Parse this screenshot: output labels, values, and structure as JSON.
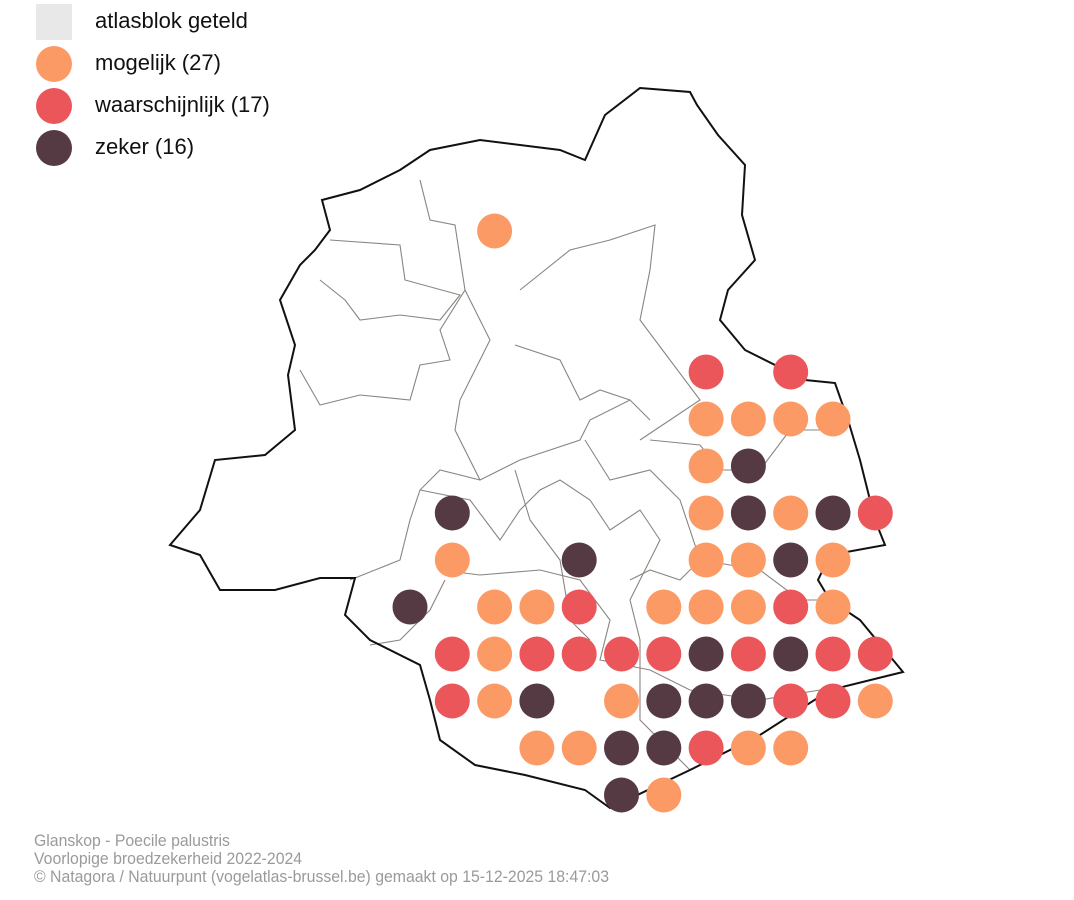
{
  "legend": {
    "counted": {
      "label": "atlasblok geteld",
      "color": "#e8e8e8"
    },
    "items": [
      {
        "key": "mogelijk",
        "label": "mogelijk (27)",
        "color": "#fc9a66"
      },
      {
        "key": "waarschijnlijk",
        "label": "waarschijnlijk (17)",
        "color": "#eb565a"
      },
      {
        "key": "zeker",
        "label": "zeker (16)",
        "color": "#553a44"
      }
    ]
  },
  "footer": {
    "species": "Glanskop - Poecile palustris",
    "subtitle": "Voorlopige broedzekerheid 2022-2024",
    "credit": "© Natagora / Natuurpunt (vogelatlas-brussel.be) gemaakt op 15-12-2025 18:47:03"
  },
  "blocks": [
    {
      "col": 2,
      "row": 0,
      "status": "mogelijk"
    },
    {
      "col": 7,
      "row": 3,
      "status": "waarschijnlijk"
    },
    {
      "col": 9,
      "row": 3,
      "status": "waarschijnlijk"
    },
    {
      "col": 7,
      "row": 4,
      "status": "mogelijk"
    },
    {
      "col": 8,
      "row": 4,
      "status": "mogelijk"
    },
    {
      "col": 9,
      "row": 4,
      "status": "mogelijk"
    },
    {
      "col": 10,
      "row": 4,
      "status": "mogelijk"
    },
    {
      "col": 7,
      "row": 5,
      "status": "mogelijk"
    },
    {
      "col": 8,
      "row": 5,
      "status": "zeker"
    },
    {
      "col": 1,
      "row": 6,
      "status": "zeker"
    },
    {
      "col": 7,
      "row": 6,
      "status": "mogelijk"
    },
    {
      "col": 8,
      "row": 6,
      "status": "zeker"
    },
    {
      "col": 9,
      "row": 6,
      "status": "mogelijk"
    },
    {
      "col": 10,
      "row": 6,
      "status": "zeker"
    },
    {
      "col": 11,
      "row": 6,
      "status": "waarschijnlijk"
    },
    {
      "col": 1,
      "row": 7,
      "status": "mogelijk"
    },
    {
      "col": 4,
      "row": 7,
      "status": "zeker"
    },
    {
      "col": 7,
      "row": 7,
      "status": "mogelijk"
    },
    {
      "col": 8,
      "row": 7,
      "status": "mogelijk"
    },
    {
      "col": 9,
      "row": 7,
      "status": "zeker"
    },
    {
      "col": 10,
      "row": 7,
      "status": "mogelijk"
    },
    {
      "col": 0,
      "row": 8,
      "status": "zeker"
    },
    {
      "col": 2,
      "row": 8,
      "status": "mogelijk"
    },
    {
      "col": 3,
      "row": 8,
      "status": "mogelijk"
    },
    {
      "col": 4,
      "row": 8,
      "status": "waarschijnlijk"
    },
    {
      "col": 6,
      "row": 8,
      "status": "mogelijk"
    },
    {
      "col": 7,
      "row": 8,
      "status": "mogelijk"
    },
    {
      "col": 8,
      "row": 8,
      "status": "mogelijk"
    },
    {
      "col": 9,
      "row": 8,
      "status": "waarschijnlijk"
    },
    {
      "col": 10,
      "row": 8,
      "status": "mogelijk"
    },
    {
      "col": 1,
      "row": 9,
      "status": "waarschijnlijk"
    },
    {
      "col": 2,
      "row": 9,
      "status": "mogelijk"
    },
    {
      "col": 3,
      "row": 9,
      "status": "waarschijnlijk"
    },
    {
      "col": 4,
      "row": 9,
      "status": "waarschijnlijk"
    },
    {
      "col": 5,
      "row": 9,
      "status": "waarschijnlijk"
    },
    {
      "col": 6,
      "row": 9,
      "status": "waarschijnlijk"
    },
    {
      "col": 7,
      "row": 9,
      "status": "zeker"
    },
    {
      "col": 8,
      "row": 9,
      "status": "waarschijnlijk"
    },
    {
      "col": 9,
      "row": 9,
      "status": "zeker"
    },
    {
      "col": 10,
      "row": 9,
      "status": "waarschijnlijk"
    },
    {
      "col": 11,
      "row": 9,
      "status": "waarschijnlijk"
    },
    {
      "col": 1,
      "row": 10,
      "status": "waarschijnlijk"
    },
    {
      "col": 2,
      "row": 10,
      "status": "mogelijk"
    },
    {
      "col": 3,
      "row": 10,
      "status": "zeker"
    },
    {
      "col": 5,
      "row": 10,
      "status": "mogelijk"
    },
    {
      "col": 6,
      "row": 10,
      "status": "zeker"
    },
    {
      "col": 7,
      "row": 10,
      "status": "zeker"
    },
    {
      "col": 8,
      "row": 10,
      "status": "zeker"
    },
    {
      "col": 9,
      "row": 10,
      "status": "waarschijnlijk"
    },
    {
      "col": 10,
      "row": 10,
      "status": "waarschijnlijk"
    },
    {
      "col": 11,
      "row": 10,
      "status": "mogelijk"
    },
    {
      "col": 3,
      "row": 11,
      "status": "mogelijk"
    },
    {
      "col": 4,
      "row": 11,
      "status": "mogelijk"
    },
    {
      "col": 5,
      "row": 11,
      "status": "zeker"
    },
    {
      "col": 6,
      "row": 11,
      "status": "zeker"
    },
    {
      "col": 7,
      "row": 11,
      "status": "waarschijnlijk"
    },
    {
      "col": 8,
      "row": 11,
      "status": "mogelijk"
    },
    {
      "col": 9,
      "row": 11,
      "status": "mogelijk"
    },
    {
      "col": 5,
      "row": 12,
      "status": "zeker"
    },
    {
      "col": 6,
      "row": 12,
      "status": "mogelijk"
    }
  ]
}
